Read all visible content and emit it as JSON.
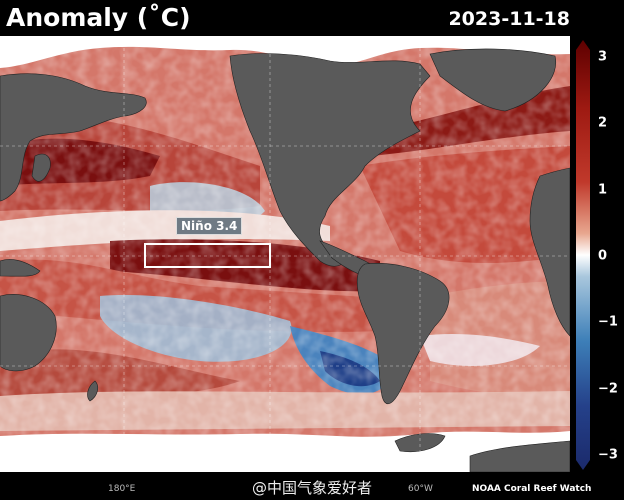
{
  "header": {
    "title": "Anomaly (˚C)",
    "date": "2023-11-18"
  },
  "map": {
    "region_label": "Niño 3.4",
    "longitude_labels": [
      "180°E",
      "60°W"
    ]
  },
  "colorbar": {
    "ticks": [
      "3",
      "2",
      "1",
      "0",
      "−1",
      "−2",
      "−3"
    ],
    "min": -3,
    "max": 3,
    "colors": {
      "positive_deep": "#5e0000",
      "positive_mid": "#c0392b",
      "positive_light": "#e8a78f",
      "zero": "#ffffff",
      "negative_light": "#a9c7dd",
      "negative_mid": "#3d7fb8",
      "negative_deep": "#1b2a6b"
    }
  },
  "footer": {
    "watermark": "@中国气象爱好者",
    "credit": "NOAA Coral Reef Watch"
  },
  "colors": {
    "land": "#5a5a5a",
    "background": "#000000",
    "nino_box": "#ffffff"
  }
}
